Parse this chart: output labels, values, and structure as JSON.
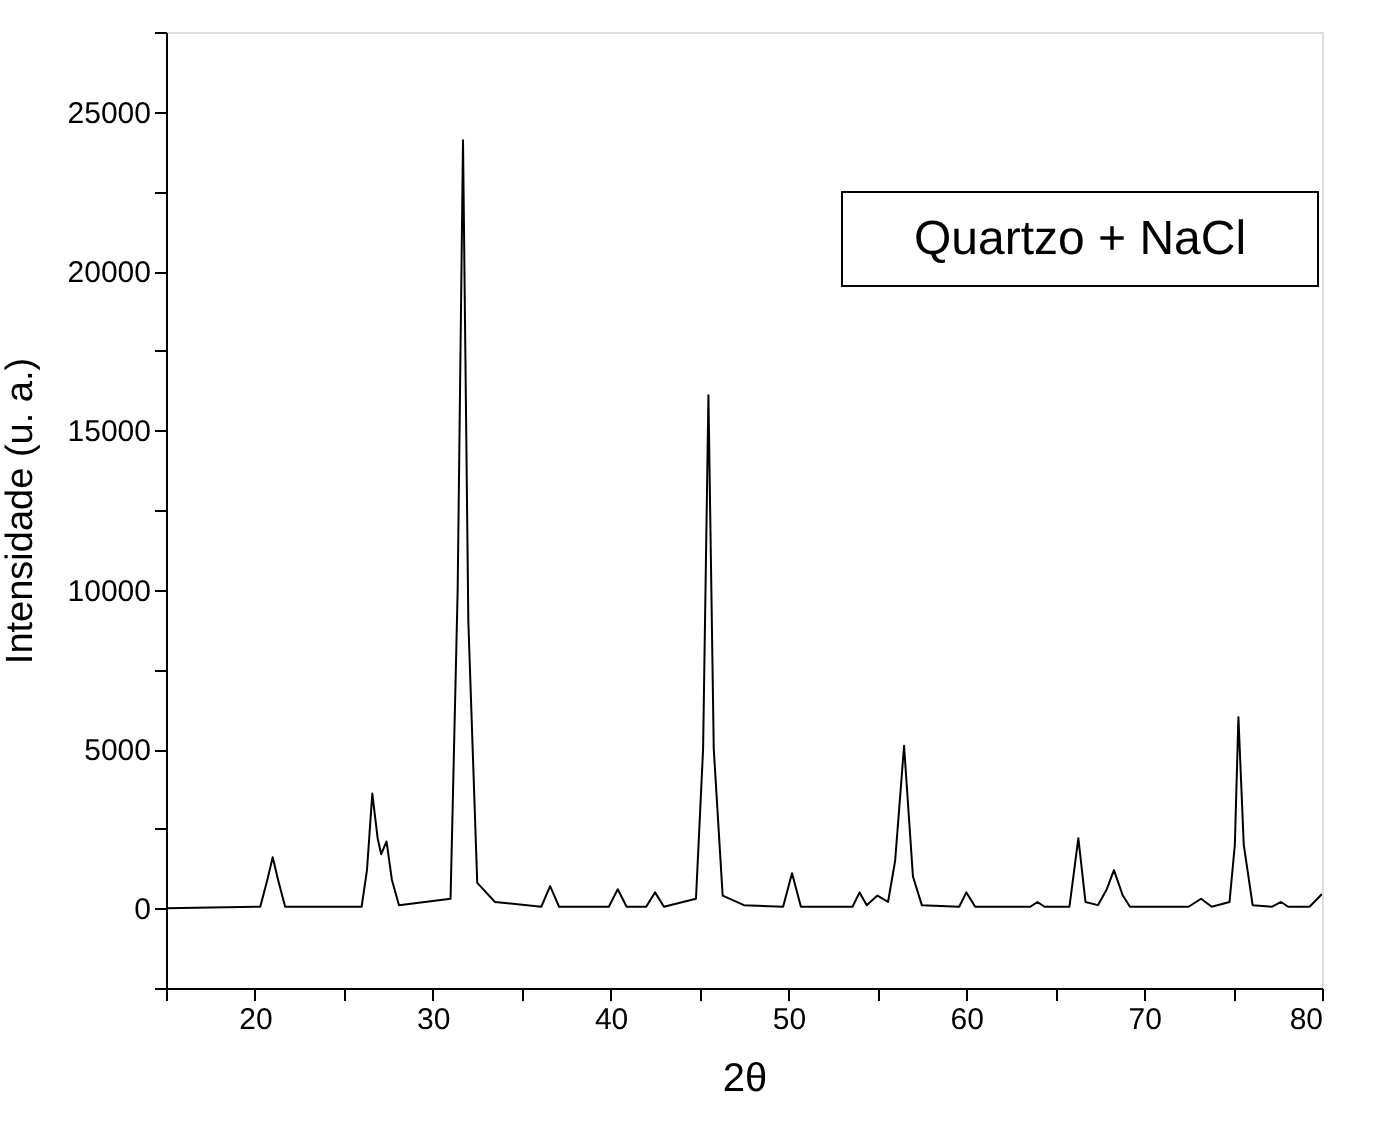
{
  "chart_data": {
    "type": "line",
    "xlabel": "2θ",
    "ylabel": "Intensidade (u. a.)",
    "annotations": [
      "Quartzo + NaCl"
    ],
    "x": [
      15,
      20.3,
      20.7,
      21,
      21.3,
      21.7,
      26,
      26.3,
      26.6,
      26.9,
      27.1,
      27.4,
      27.7,
      28.1,
      31,
      31.4,
      31.7,
      32.0,
      32.5,
      33.5,
      36.1,
      36.6,
      37.1,
      39.9,
      40.4,
      40.9,
      42,
      42.5,
      43,
      44.8,
      45.2,
      45.5,
      45.8,
      46.3,
      47.5,
      49.7,
      50.2,
      50.7,
      53.6,
      54,
      54.4,
      55,
      55.6,
      56.0,
      56.5,
      57.0,
      57.5,
      59.6,
      60,
      60.5,
      63.6,
      64,
      64.4,
      65.8,
      66.3,
      66.7,
      67.4,
      67.9,
      68.3,
      68.8,
      69.2,
      72.5,
      73.2,
      73.8,
      74.8,
      75.1,
      75.3,
      75.6,
      76.1,
      77.2,
      77.7,
      78.1,
      79.3,
      80
    ],
    "series": [
      {
        "color": "#000000",
        "values": [
          0,
          50,
          900,
          1600,
          900,
          50,
          50,
          1200,
          3600,
          2200,
          1700,
          2100,
          900,
          100,
          300,
          10000,
          24100,
          9000,
          800,
          200,
          50,
          700,
          50,
          50,
          600,
          50,
          50,
          500,
          50,
          300,
          5000,
          16100,
          5000,
          400,
          100,
          50,
          1100,
          50,
          50,
          500,
          100,
          400,
          200,
          1500,
          5100,
          1000,
          100,
          50,
          500,
          50,
          50,
          200,
          50,
          50,
          2200,
          200,
          100,
          600,
          1200,
          400,
          50,
          50,
          300,
          50,
          200,
          2000,
          6000,
          2000,
          100,
          50,
          200,
          50,
          50,
          450
        ]
      }
    ],
    "xlim": [
      15,
      80
    ],
    "ylim": [
      -2500,
      27500
    ],
    "xticks": [
      {
        "value": 15,
        "label": null
      },
      20,
      {
        "value": 25,
        "label": null
      },
      30,
      {
        "value": 35,
        "label": null
      },
      40,
      {
        "value": 45,
        "label": null
      },
      50,
      {
        "value": 55,
        "label": null
      },
      60,
      {
        "value": 65,
        "label": null
      },
      70,
      {
        "value": 75,
        "label": null
      },
      80
    ],
    "yticks": [
      {
        "value": -2500,
        "label": null
      },
      0,
      {
        "value": 2500,
        "label": null
      },
      5000,
      {
        "value": 7500,
        "label": null
      },
      10000,
      {
        "value": 12500,
        "label": null
      },
      15000,
      {
        "value": 17500,
        "label": null
      },
      20000,
      {
        "value": 22500,
        "label": null
      },
      25000,
      {
        "value": 27500,
        "label": null
      }
    ],
    "grid": false,
    "marker": "none",
    "line_style": "solid"
  }
}
